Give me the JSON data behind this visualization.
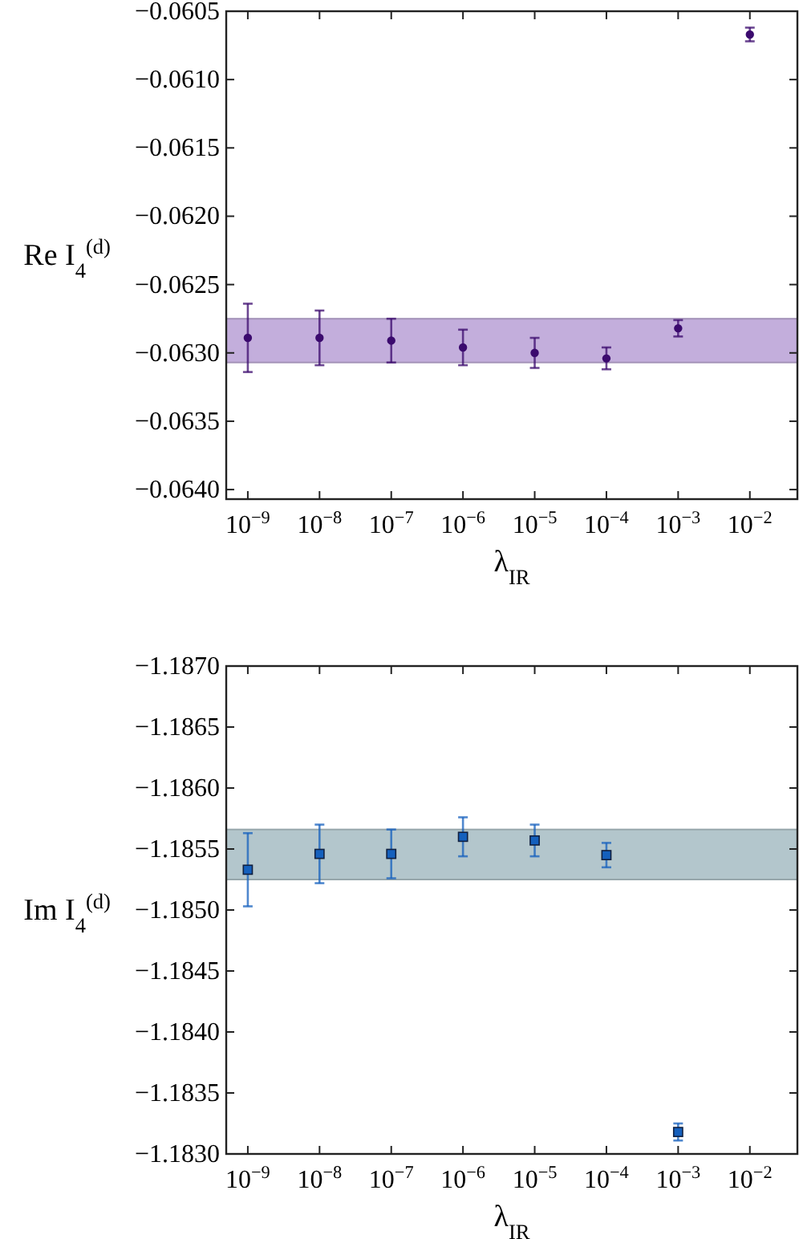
{
  "chart_data": [
    {
      "type": "scatter",
      "xlabel": "λ$_{IR}$",
      "ylabel": "Re I$_{4}$$^{(d)}$",
      "log": "x",
      "marker": "circle",
      "grid": false,
      "xlim": [
        5e-10,
        0.046
      ],
      "xticks": [
        {
          "value": 1e-09,
          "label": "10$^{−9}$"
        },
        {
          "value": 1e-08,
          "label": "10$^{−8}$"
        },
        {
          "value": 1e-07,
          "label": "10$^{−7}$"
        },
        {
          "value": 1e-06,
          "label": "10$^{−6}$"
        },
        {
          "value": 1e-05,
          "label": "10$^{−5}$"
        },
        {
          "value": 0.0001,
          "label": "10$^{−4}$"
        },
        {
          "value": 0.001,
          "label": "10$^{−3}$"
        },
        {
          "value": 0.01,
          "label": "10$^{−2}$"
        }
      ],
      "ylim": [
        -0.06407,
        -0.0605
      ],
      "yticks": [
        {
          "value": -0.064,
          "label": "−0.0640"
        },
        {
          "value": -0.0635,
          "label": "−0.0635"
        },
        {
          "value": -0.063,
          "label": "−0.0630"
        },
        {
          "value": -0.0625,
          "label": "−0.0625"
        },
        {
          "value": -0.062,
          "label": "−0.0620"
        },
        {
          "value": -0.0615,
          "label": "−0.0615"
        },
        {
          "value": -0.061,
          "label": "−0.0610"
        },
        {
          "value": -0.0605,
          "label": "−0.0605"
        }
      ],
      "bands": [
        {
          "axis": "y",
          "from": -0.06307,
          "to": -0.06275,
          "color": "#c3aedc"
        }
      ],
      "series": [
        {
          "color": "#3b0a6e",
          "x": [
            1e-09,
            1e-08,
            1e-07,
            1e-06,
            1e-05,
            0.0001,
            0.001,
            0.01
          ],
          "values": [
            -0.06289,
            -0.06289,
            -0.06291,
            -0.06296,
            -0.063,
            -0.06304,
            -0.06282,
            -0.06067
          ],
          "errors": [
            0.00025,
            0.0002,
            0.00016,
            0.00013,
            0.00011,
            8e-05,
            6e-05,
            5e-05
          ]
        }
      ]
    },
    {
      "type": "scatter",
      "xlabel": "λ$_{IR}$",
      "ylabel": "Im I$_{4}$$^{(d)}$",
      "log": "x",
      "marker": "square",
      "grid": false,
      "xlim": [
        5e-10,
        0.046
      ],
      "xticks": [
        {
          "value": 1e-09,
          "label": "10$^{−9}$"
        },
        {
          "value": 1e-08,
          "label": "10$^{−8}$"
        },
        {
          "value": 1e-07,
          "label": "10$^{−7}$"
        },
        {
          "value": 1e-06,
          "label": "10$^{−6}$"
        },
        {
          "value": 1e-05,
          "label": "10$^{−5}$"
        },
        {
          "value": 0.0001,
          "label": "10$^{−4}$"
        },
        {
          "value": 0.001,
          "label": "10$^{−3}$"
        },
        {
          "value": 0.01,
          "label": "10$^{−2}$"
        }
      ],
      "ylim": [
        -1.183,
        -1.187
      ],
      "yticks": [
        {
          "value": -1.183,
          "label": "−1.1830"
        },
        {
          "value": -1.1835,
          "label": "−1.1835"
        },
        {
          "value": -1.184,
          "label": "−1.1840"
        },
        {
          "value": -1.1845,
          "label": "−1.1845"
        },
        {
          "value": -1.185,
          "label": "−1.1850"
        },
        {
          "value": -1.1855,
          "label": "−1.1855"
        },
        {
          "value": -1.186,
          "label": "−1.1860"
        },
        {
          "value": -1.1865,
          "label": "−1.1865"
        },
        {
          "value": -1.187,
          "label": "−1.1870"
        }
      ],
      "bands": [
        {
          "axis": "y",
          "from": -1.18566,
          "to": -1.18525,
          "color": "#b3c6cc"
        }
      ],
      "series": [
        {
          "color": "#1560bd",
          "x": [
            1e-09,
            1e-08,
            1e-07,
            1e-06,
            1e-05,
            0.0001,
            0.001
          ],
          "values": [
            -1.18533,
            -1.18546,
            -1.18546,
            -1.1856,
            -1.18557,
            -1.18545,
            -1.18318
          ],
          "errors": [
            0.0003,
            0.00024,
            0.0002,
            0.00016,
            0.00013,
            0.0001,
            7e-05
          ]
        }
      ]
    }
  ]
}
